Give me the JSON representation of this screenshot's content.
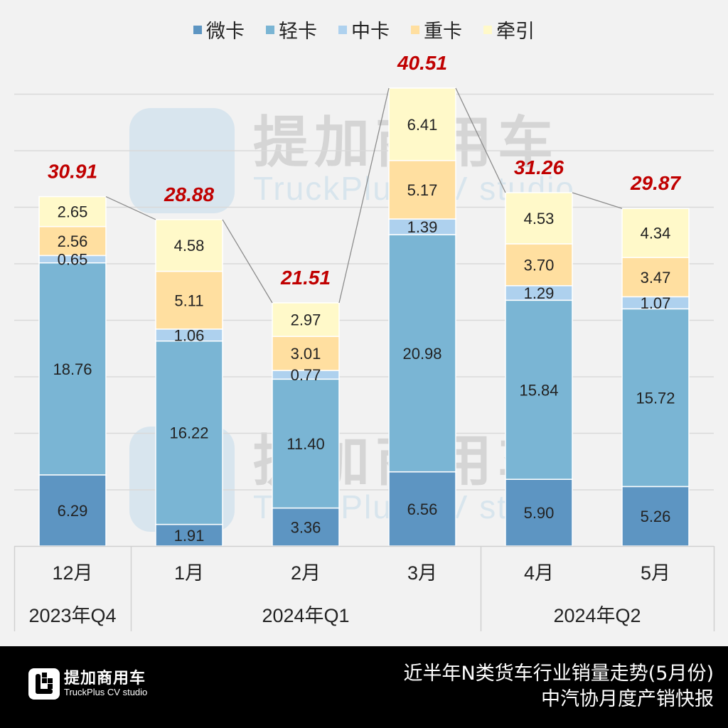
{
  "chart_data": {
    "type": "bar",
    "stacked": true,
    "categories": [
      "12月",
      "1月",
      "2月",
      "3月",
      "4月",
      "5月"
    ],
    "groups": [
      {
        "label": "2023年Q4",
        "span": 1
      },
      {
        "label": "2024年Q1",
        "span": 3
      },
      {
        "label": "2024年Q2",
        "span": 2
      }
    ],
    "series": [
      {
        "name": "微卡",
        "color": "#5d95c2",
        "values": [
          6.29,
          1.91,
          3.36,
          6.56,
          5.9,
          5.26
        ]
      },
      {
        "name": "轻卡",
        "color": "#7ab5d4",
        "values": [
          18.76,
          16.22,
          11.4,
          20.98,
          15.84,
          15.72
        ]
      },
      {
        "name": "中卡",
        "color": "#aed1ee",
        "values": [
          0.65,
          1.06,
          0.77,
          1.39,
          1.29,
          1.07
        ]
      },
      {
        "name": "重卡",
        "color": "#ffdfa0",
        "values": [
          2.56,
          5.11,
          3.01,
          5.17,
          3.7,
          3.47
        ]
      },
      {
        "name": "牵引",
        "color": "#fff9c9",
        "values": [
          2.65,
          4.58,
          2.97,
          6.41,
          4.53,
          4.34
        ]
      }
    ],
    "value_labels": [
      [
        "6.29",
        "1.91",
        "3.36",
        "6.56",
        "5.90",
        "5.26"
      ],
      [
        "18.76",
        "16.22",
        "11.40",
        "20.98",
        "15.84",
        "15.72"
      ],
      [
        "0.65",
        "1.06",
        "0.77",
        "1.39",
        "1.29",
        "1.07"
      ],
      [
        "2.56",
        "5.11",
        "3.01",
        "5.17",
        "3.70",
        "3.47"
      ],
      [
        "2.65",
        "4.58",
        "2.97",
        "6.41",
        "4.53",
        "4.34"
      ]
    ],
    "totals": [
      30.91,
      28.88,
      21.51,
      40.51,
      31.26,
      29.87
    ],
    "total_labels": [
      "30.91",
      "28.88",
      "21.51",
      "40.51",
      "31.26",
      "29.87"
    ],
    "total_color": "#c00000",
    "ylim": [
      0,
      40
    ],
    "ygrid_step": 5,
    "grid": true,
    "legend_position": "top"
  },
  "watermark": {
    "cn": "提加商用车",
    "en": "TruckPlus CV studio"
  },
  "footer": {
    "logo_cn": "提加商用车",
    "logo_en": "TruckPlus CV studio",
    "title_line1": "近半年N类货车行业销量走势(5月份)",
    "title_line2": "中汽协月度产销快报"
  }
}
